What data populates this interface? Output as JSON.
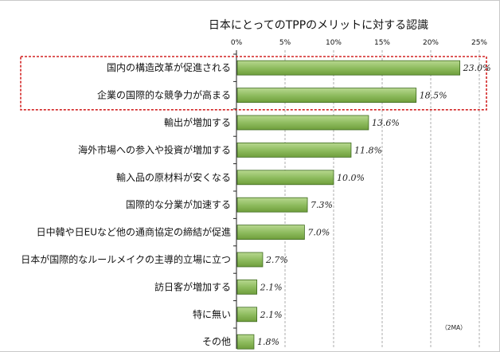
{
  "chart_data": {
    "type": "bar",
    "orientation": "horizontal",
    "title": "日本にとってのTPPのメリットに対する認識",
    "source_note": "（2MA）",
    "xlim": [
      0,
      25
    ],
    "xticks": [
      "0%",
      "5%",
      "10%",
      "15%",
      "20%",
      "25%"
    ],
    "grid": true,
    "categories": [
      "国内の構造改革が促進される",
      "企業の国際的な競争力が高まる",
      "輸出が増加する",
      "海外市場への参入や投資が増加する",
      "輸入品の原材料が安くなる",
      "国際的な分業が加速する",
      "日中韓や日EUなど他の通商協定の締結が促進",
      "日本が国際的なルールメイクの主導的立場に立つ",
      "訪日客が増加する",
      "特に無い",
      "その他"
    ],
    "values": [
      23.0,
      18.5,
      13.6,
      11.8,
      10.0,
      7.3,
      7.0,
      2.7,
      2.1,
      2.1,
      1.8
    ],
    "data_labels": [
      "23.0%",
      "18.5%",
      "13.6%",
      "11.8%",
      "10.0%",
      "7.3%",
      "7.0%",
      "2.7%",
      "2.1%",
      "2.1%",
      "1.8%"
    ],
    "highlighted_categories": [
      0,
      1
    ],
    "colors": {
      "bar_fill_light": "#b8d890",
      "bar_fill_dark": "#6f9e3c",
      "bar_stroke": "#3e6a1e",
      "highlight_box": "#d22222",
      "grid": "#9a9a9a"
    }
  }
}
